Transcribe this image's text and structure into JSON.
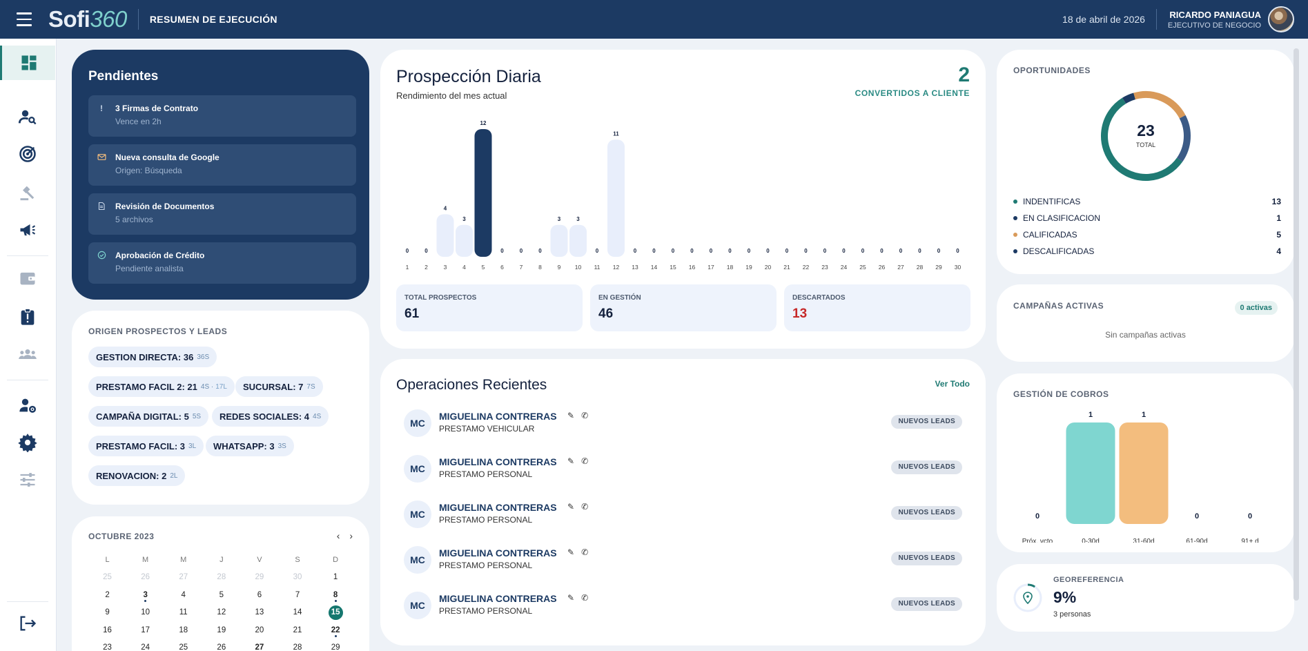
{
  "topbar": {
    "logo_main": "Sofi",
    "logo_accent": "360",
    "title": "RESUMEN DE EJECUCIÓN",
    "date": "18 de abril de 2026",
    "user_name": "RICARDO PANIAGUA",
    "user_role": "EJECUTIVO DE NEGOCIO"
  },
  "pendientes": {
    "title": "Pendientes",
    "items": [
      {
        "icon": "exclamation-icon",
        "title": "3 Firmas de Contrato",
        "sub": "Vence en 2h"
      },
      {
        "icon": "mail-icon",
        "title": "Nueva consulta de Google",
        "sub": "Origen: Búsqueda"
      },
      {
        "icon": "document-icon",
        "title": "Revisión de Documentos",
        "sub": "5 archivos"
      },
      {
        "icon": "check-circle-icon",
        "title": "Aprobación de Crédito",
        "sub": "Pendiente analista"
      }
    ]
  },
  "origen": {
    "title": "ORIGEN PROSPECTOS Y LEADS",
    "chips": [
      {
        "label": "GESTION DIRECTA: 36",
        "sub": "36S",
        "sub2": ""
      },
      {
        "label": "PRESTAMO FACIL 2: 21",
        "sub": "4S ·",
        "sub2": "17L"
      },
      {
        "label": "SUCURSAL: 7",
        "sub": "7S",
        "sub2": ""
      },
      {
        "label": "CAMPAÑA DIGITAL: 5",
        "sub": "5S",
        "sub2": ""
      },
      {
        "label": "REDES SOCIALES: 4",
        "sub": "4S",
        "sub2": ""
      },
      {
        "label": "PRESTAMO FACIL: 3",
        "sub": "3L",
        "sub2": ""
      },
      {
        "label": "WHATSAPP: 3",
        "sub": "3S",
        "sub2": ""
      },
      {
        "label": "RENOVACION: 2",
        "sub": "2L",
        "sub2": ""
      }
    ]
  },
  "calendar": {
    "title": "OCTUBRE 2023",
    "prev": "‹",
    "next": "›",
    "dows": [
      "L",
      "M",
      "M",
      "J",
      "V",
      "S",
      "D"
    ],
    "weeks": [
      [
        "25",
        "26",
        "27",
        "28",
        "29",
        "30",
        "1"
      ],
      [
        "2",
        "3",
        "4",
        "5",
        "6",
        "7",
        "8"
      ],
      [
        "9",
        "10",
        "11",
        "12",
        "13",
        "14",
        "15"
      ],
      [
        "16",
        "17",
        "18",
        "19",
        "20",
        "21",
        "22"
      ],
      [
        "23",
        "24",
        "25",
        "26",
        "27",
        "28",
        "29"
      ]
    ]
  },
  "prospeccion": {
    "title": "Prospección Diaria",
    "subtitle": "Rendimiento del mes actual",
    "converted_value": "2",
    "converted_label": "CONVERTIDOS A CLIENTE",
    "stats": [
      {
        "label": "TOTAL PROSPECTOS",
        "value": "61",
        "color": "#14213d"
      },
      {
        "label": "EN GESTIÓN",
        "value": "46",
        "color": "#14213d"
      },
      {
        "label": "DESCARTADOS",
        "value": "13",
        "color": "#c62828"
      }
    ]
  },
  "chart_data": [
    {
      "type": "bar",
      "categories": [
        "1",
        "2",
        "3",
        "4",
        "5",
        "6",
        "7",
        "8",
        "9",
        "10",
        "11",
        "12",
        "13",
        "14",
        "15",
        "16",
        "17",
        "18",
        "19",
        "20",
        "21",
        "22",
        "23",
        "24",
        "25",
        "26",
        "27",
        "28",
        "29",
        "30"
      ],
      "values": [
        0,
        0,
        4,
        3,
        12,
        0,
        0,
        0,
        3,
        3,
        0,
        11,
        0,
        0,
        0,
        0,
        0,
        0,
        0,
        0,
        0,
        0,
        0,
        0,
        0,
        0,
        0,
        0,
        0,
        0
      ],
      "highlight": "5",
      "colors": {
        "normal": "#e8eefb",
        "highlight": "#1c3a63"
      }
    },
    {
      "type": "bar",
      "categories": [
        "Próx. vcto",
        "0-30d",
        "31-60d",
        "61-90d",
        "91+ d"
      ],
      "values": [
        0,
        1,
        1,
        0,
        0
      ],
      "colors": [
        "#7fd6d0",
        "#7fd6d0",
        "#f3bd7e",
        "#f3bd7e",
        "#f3bd7e"
      ]
    },
    {
      "type": "pie",
      "categories": [
        "INDENTIFICAS",
        "EN CLASIFICACION",
        "CALIFICADAS",
        "DESCALIFICADAS"
      ],
      "values": [
        13,
        1,
        5,
        4
      ],
      "colors": [
        "#1f7a73",
        "#1c3a63",
        "#d99a5a",
        "#3b5a86"
      ]
    }
  ],
  "operaciones": {
    "title": "Operaciones Recientes",
    "view_all": "Ver Todo",
    "rows": [
      {
        "initials": "MC",
        "name": "MIGUELINA CONTRERAS",
        "product": "PRESTAMO VEHICULAR",
        "badge": "NUEVOS LEADS"
      },
      {
        "initials": "MC",
        "name": "MIGUELINA CONTRERAS",
        "product": "PRESTAMO PERSONAL",
        "badge": "NUEVOS LEADS"
      },
      {
        "initials": "MC",
        "name": "MIGUELINA CONTRERAS",
        "product": "PRESTAMO PERSONAL",
        "badge": "NUEVOS LEADS"
      },
      {
        "initials": "MC",
        "name": "MIGUELINA CONTRERAS",
        "product": "PRESTAMO PERSONAL",
        "badge": "NUEVOS LEADS"
      },
      {
        "initials": "MC",
        "name": "MIGUELINA CONTRERAS",
        "product": "PRESTAMO PERSONAL",
        "badge": "NUEVOS LEADS"
      }
    ]
  },
  "oportunidades": {
    "title": "OPORTUNIDADES",
    "total_value": "23",
    "total_label": "TOTAL",
    "legend": [
      {
        "label": "INDENTIFICAS",
        "value": "13",
        "color": "#1f7a73"
      },
      {
        "label": "EN CLASIFICACION",
        "value": "1",
        "color": "#1c3a63"
      },
      {
        "label": "CALIFICADAS",
        "value": "5",
        "color": "#d99a5a"
      },
      {
        "label": "DESCALIFICADAS",
        "value": "4",
        "color": "#1c3a63"
      }
    ]
  },
  "campanas": {
    "title": "CAMPAÑAS ACTIVAS",
    "badge": "0 activas",
    "empty": "Sin campañas activas"
  },
  "cobros": {
    "title": "GESTIÓN DE COBROS"
  },
  "geo": {
    "title": "GEOREFERENCIA",
    "value": "9%",
    "sub": "3 personas",
    "percent": 9
  }
}
